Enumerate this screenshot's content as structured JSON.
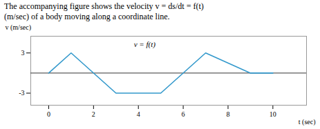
{
  "chart_data": {
    "type": "line",
    "title": "The accompanying figure shows the velocity v = ds/dt = f(t)",
    "subtitle": "(m/sec) of a body moving along a coordinate line.",
    "xlabel": "t (sec)",
    "ylabel": "v (m/sec)",
    "x": [
      0,
      1,
      3,
      5,
      7,
      9,
      10
    ],
    "series": [
      {
        "name": "v = f(t)",
        "color": "#3399cc",
        "values": [
          0,
          3,
          -3,
          -3,
          3,
          0,
          0
        ]
      }
    ],
    "annotations": [
      {
        "text": "v = f(t)",
        "x": 3.8,
        "y": 3.6
      }
    ],
    "xlim": [
      -0.8,
      11.5
    ],
    "ylim": [
      -4.8,
      5.5
    ],
    "xticks": [
      0,
      2,
      4,
      6,
      8,
      10
    ],
    "yticks": [
      3,
      -3
    ],
    "grid": false
  }
}
